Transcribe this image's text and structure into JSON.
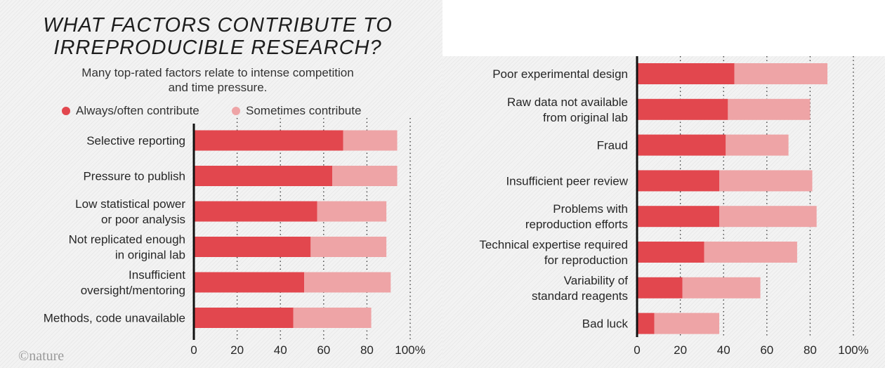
{
  "title_lines": [
    "WHAT FACTORS CONTRIBUTE TO",
    "IRREPRODUCIBLE RESEARCH?"
  ],
  "subtitle_lines": [
    "Many top-rated factors relate to intense competition",
    "and time pressure."
  ],
  "legend": {
    "always": "Always/often contribute",
    "sometimes": "Sometimes contribute"
  },
  "colors": {
    "always": "#e2474e",
    "sometimes": "#eea4a6"
  },
  "credit": "nature",
  "chart_data": [
    {
      "type": "bar",
      "orientation": "horizontal",
      "stacked": true,
      "categories": [
        "Selective reporting",
        "Pressure to publish",
        "Low statistical power\nor poor analysis",
        "Not replicated enough\nin original lab",
        "Insufficient\noversight/mentoring",
        "Methods, code unavailable"
      ],
      "series": [
        {
          "name": "Always/often contribute",
          "values": [
            69,
            64,
            57,
            54,
            51,
            46
          ]
        },
        {
          "name": "Sometimes contribute",
          "values": [
            25,
            30,
            32,
            35,
            40,
            36
          ]
        }
      ],
      "xlim": [
        0,
        100
      ],
      "ticks": [
        "0",
        "20",
        "40",
        "60",
        "80",
        "100%"
      ],
      "grid": true
    },
    {
      "type": "bar",
      "orientation": "horizontal",
      "stacked": true,
      "categories": [
        "Poor experimental design",
        "Raw data not available\nfrom original lab",
        "Fraud",
        "Insufficient peer review",
        "Problems with\nreproduction efforts",
        "Technical expertise required\nfor reproduction",
        "Variability of\nstandard reagents",
        "Bad luck"
      ],
      "series": [
        {
          "name": "Always/often contribute",
          "values": [
            45,
            42,
            41,
            38,
            38,
            31,
            21,
            8
          ]
        },
        {
          "name": "Sometimes contribute",
          "values": [
            43,
            38,
            29,
            43,
            45,
            43,
            36,
            30
          ]
        }
      ],
      "xlim": [
        0,
        100
      ],
      "ticks": [
        "0",
        "20",
        "40",
        "60",
        "80",
        "100%"
      ],
      "grid": true
    }
  ]
}
